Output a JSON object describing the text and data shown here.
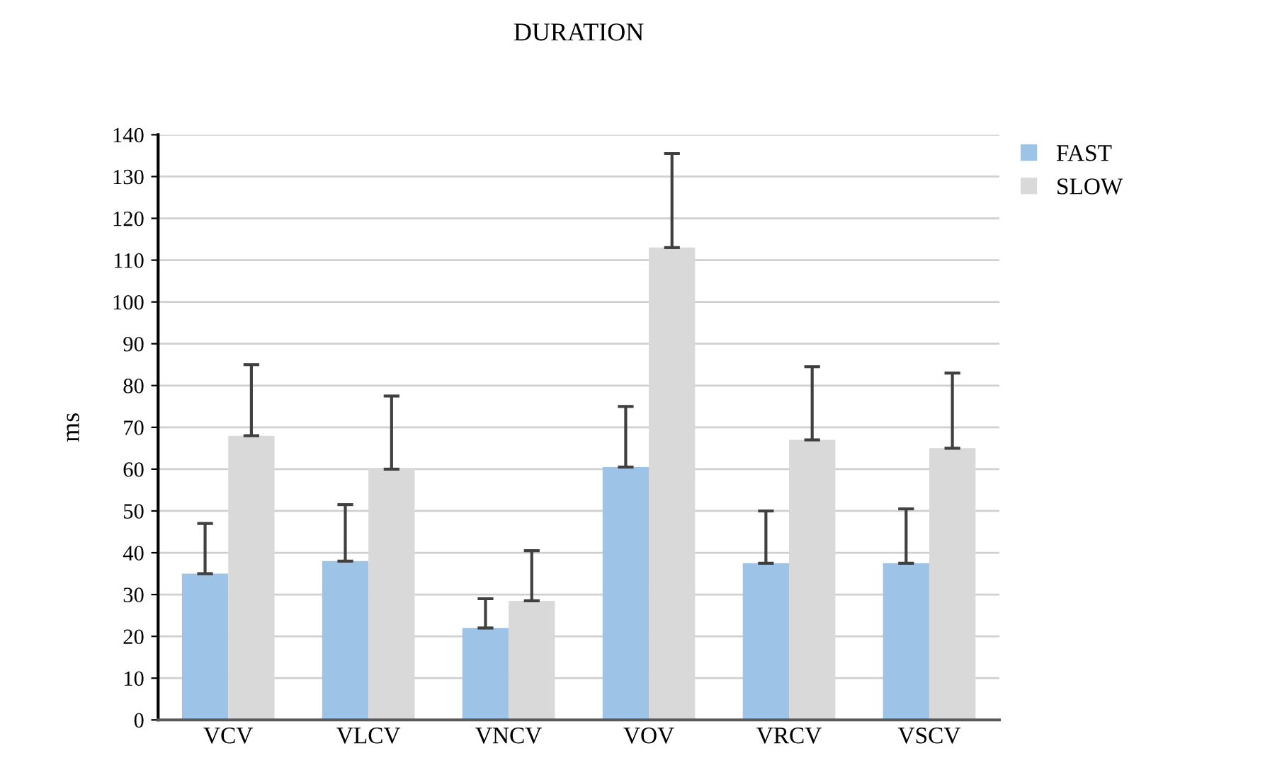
{
  "chart_data": {
    "type": "bar",
    "title": "DURATION",
    "ylabel": "ms",
    "categories": [
      "VCV",
      "VLCV",
      "VNCV",
      "VOV",
      "VRCV",
      "VSCV"
    ],
    "series": [
      {
        "name": "FAST",
        "color": "#9dc3e6",
        "values": [
          35,
          38,
          22,
          60.5,
          37.5,
          37.5
        ],
        "errors": [
          [
            35,
            47
          ],
          [
            38,
            51.5
          ],
          [
            22,
            29
          ],
          [
            60.5,
            75
          ],
          [
            37.5,
            50
          ],
          [
            37.5,
            50.5
          ]
        ]
      },
      {
        "name": "SLOW",
        "color": "#d9d9d9",
        "values": [
          68,
          60,
          28.5,
          113,
          67,
          65
        ],
        "errors": [
          [
            68,
            85
          ],
          [
            60,
            77.5
          ],
          [
            28.5,
            40.5
          ],
          [
            113,
            135.5
          ],
          [
            67,
            84.5
          ],
          [
            65,
            83
          ]
        ]
      }
    ],
    "ylim": [
      0,
      140
    ],
    "yticks": [
      0,
      10,
      20,
      30,
      40,
      50,
      60,
      70,
      80,
      90,
      100,
      110,
      120,
      130,
      140
    ],
    "grid": "y",
    "legend": "top right"
  }
}
